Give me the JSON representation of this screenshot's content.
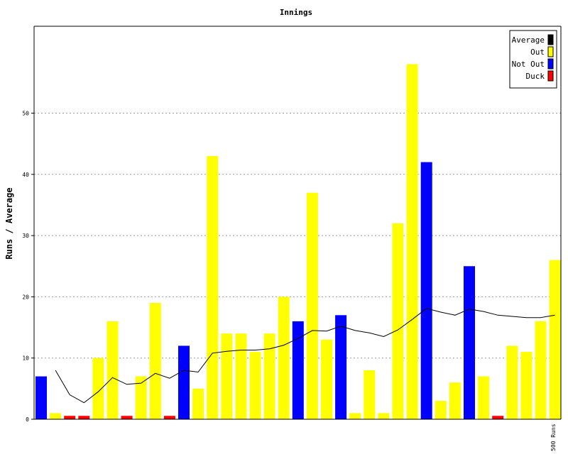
{
  "chart_data": {
    "type": "bar",
    "title": "Innings",
    "ylabel": "Runs / Average",
    "ylim": [
      0,
      64
    ],
    "yticks": [
      0,
      10,
      20,
      30,
      40,
      50
    ],
    "grid": true,
    "legend_position": "top-right",
    "x_marker_label": "500 Runs",
    "legend": [
      {
        "name": "Average",
        "color": "#000000"
      },
      {
        "name": "Out",
        "color": "#ffff00"
      },
      {
        "name": "Not Out",
        "color": "#0000ff"
      },
      {
        "name": "Duck",
        "color": "#ff0000"
      }
    ],
    "innings": [
      {
        "runs": 7,
        "status": "notout"
      },
      {
        "runs": 1,
        "status": "out"
      },
      {
        "runs": 0,
        "status": "duck"
      },
      {
        "runs": 0,
        "status": "duck"
      },
      {
        "runs": 10,
        "status": "out"
      },
      {
        "runs": 16,
        "status": "out"
      },
      {
        "runs": 0,
        "status": "duck"
      },
      {
        "runs": 7,
        "status": "out"
      },
      {
        "runs": 19,
        "status": "out"
      },
      {
        "runs": 0,
        "status": "duck"
      },
      {
        "runs": 12,
        "status": "notout"
      },
      {
        "runs": 5,
        "status": "out"
      },
      {
        "runs": 43,
        "status": "out"
      },
      {
        "runs": 14,
        "status": "out"
      },
      {
        "runs": 14,
        "status": "out"
      },
      {
        "runs": 11,
        "status": "out"
      },
      {
        "runs": 14,
        "status": "out"
      },
      {
        "runs": 20,
        "status": "out"
      },
      {
        "runs": 16,
        "status": "notout"
      },
      {
        "runs": 37,
        "status": "out"
      },
      {
        "runs": 13,
        "status": "out"
      },
      {
        "runs": 17,
        "status": "notout"
      },
      {
        "runs": 1,
        "status": "out"
      },
      {
        "runs": 8,
        "status": "out"
      },
      {
        "runs": 1,
        "status": "out"
      },
      {
        "runs": 32,
        "status": "out"
      },
      {
        "runs": 58,
        "status": "out"
      },
      {
        "runs": 42,
        "status": "notout"
      },
      {
        "runs": 3,
        "status": "out"
      },
      {
        "runs": 6,
        "status": "out"
      },
      {
        "runs": 25,
        "status": "notout"
      },
      {
        "runs": 7,
        "status": "out"
      },
      {
        "runs": 0,
        "status": "duck"
      },
      {
        "runs": 12,
        "status": "out"
      },
      {
        "runs": 11,
        "status": "out"
      },
      {
        "runs": 16,
        "status": "out"
      },
      {
        "runs": 26,
        "status": "out"
      }
    ],
    "average": [
      null,
      8.0,
      4.0,
      2.7,
      4.5,
      6.8,
      5.7,
      5.9,
      7.5,
      6.7,
      8.0,
      7.7,
      10.8,
      11.1,
      11.3,
      11.3,
      11.5,
      12.1,
      13.2,
      14.5,
      14.4,
      15.2,
      14.5,
      14.1,
      13.5,
      14.6,
      16.3,
      18.1,
      17.5,
      17.0,
      18.0,
      17.6,
      17.0,
      16.8,
      16.6,
      16.6,
      17.0
    ],
    "colors": {
      "out": "#ffff00",
      "notout": "#0000ff",
      "duck": "#ff0000",
      "average": "#000000",
      "grid": "#999999"
    }
  }
}
